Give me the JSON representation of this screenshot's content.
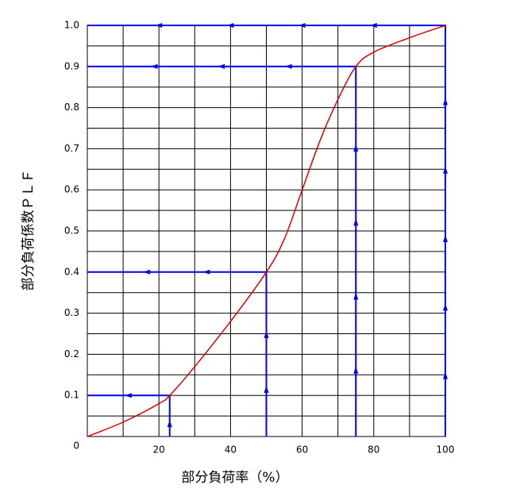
{
  "chart_data": {
    "type": "line",
    "xlabel": "部分負荷率（%）",
    "ylabel": "部分負荷係数ＰＬＦ",
    "x": [
      0,
      10,
      20,
      23,
      30,
      40,
      50,
      55,
      60,
      65,
      70,
      75,
      80,
      90,
      100
    ],
    "values": [
      0,
      0.035,
      0.08,
      0.1,
      0.17,
      0.28,
      0.4,
      0.48,
      0.6,
      0.72,
      0.82,
      0.9,
      0.935,
      0.97,
      1.0
    ],
    "color": "#e00000",
    "guides": {
      "x": [
        23,
        50,
        75,
        100
      ],
      "values": [
        0.1,
        0.4,
        0.9,
        1.0
      ],
      "color": "#0000ee"
    },
    "xlim": [
      0,
      100
    ],
    "ylim": [
      0,
      1
    ],
    "xticks": [
      20,
      40,
      60,
      80,
      100
    ],
    "yticks": [
      0,
      0.1,
      0.2,
      0.3,
      0.4,
      0.5,
      0.6,
      0.7,
      0.8,
      0.9,
      {
        "value": 1,
        "label": "1.0"
      }
    ],
    "grid": true
  }
}
